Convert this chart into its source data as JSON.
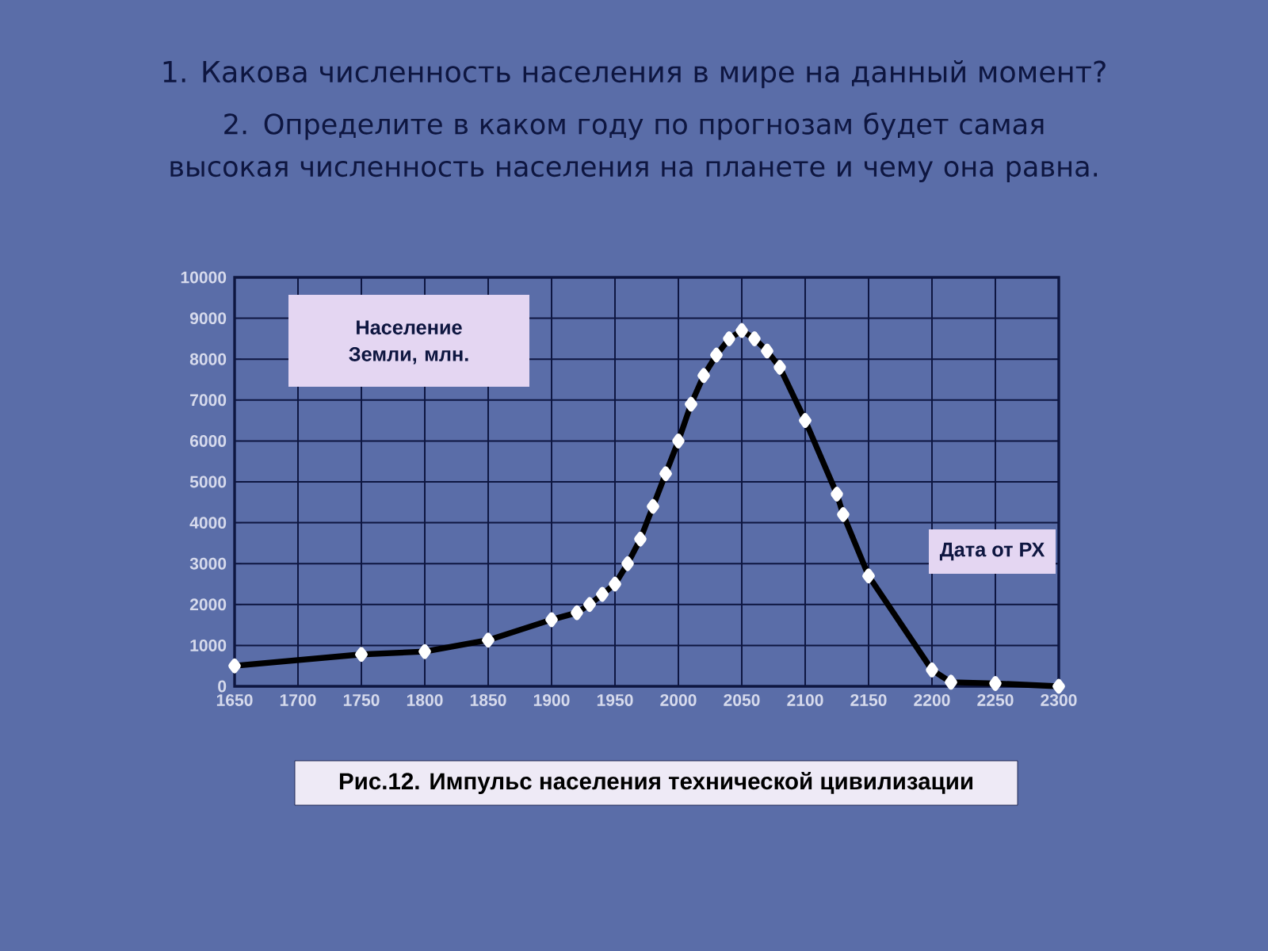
{
  "chart_data": {
    "type": "line",
    "title": "1. Какова численность населения в мире на данный момент?",
    "subtitle": "2. Определите в каком году по прогнозам будет самая высокая численность населения на планете и чему она равна.",
    "ylabel": "Население Земли, млн.",
    "xlabel": "Дата от РХ",
    "annotations": [
      "Рис.12. Импульс населения технической цивилизации"
    ],
    "x": [
      1650,
      1750,
      1800,
      1850,
      1900,
      1920,
      1930,
      1940,
      1950,
      1960,
      1970,
      1980,
      1990,
      2000,
      2010,
      2020,
      2030,
      2040,
      2050,
      2060,
      2070,
      2080,
      2100,
      2125,
      2130,
      2150,
      2200,
      2215,
      2250,
      2300
    ],
    "series": [
      {
        "color": "#000000",
        "values": [
          500,
          780,
          850,
          1130,
          1630,
          1800,
          2000,
          2250,
          2500,
          3000,
          3600,
          4400,
          5200,
          6000,
          6900,
          7600,
          8100,
          8500,
          8700,
          8500,
          8200,
          7800,
          6500,
          4700,
          4200,
          2700,
          400,
          100,
          70,
          0
        ]
      }
    ],
    "marker": "diamond",
    "grid": true,
    "xlim": [
      1650,
      2300
    ],
    "ylim": [
      0,
      10000
    ],
    "xticks": [
      1650,
      1700,
      1750,
      1800,
      1850,
      1900,
      1950,
      2000,
      2050,
      2100,
      2150,
      2200,
      2250,
      2300
    ],
    "yticks": [
      0,
      1000,
      2000,
      3000,
      4000,
      5000,
      6000,
      7000,
      8000,
      9000,
      10000
    ]
  }
}
